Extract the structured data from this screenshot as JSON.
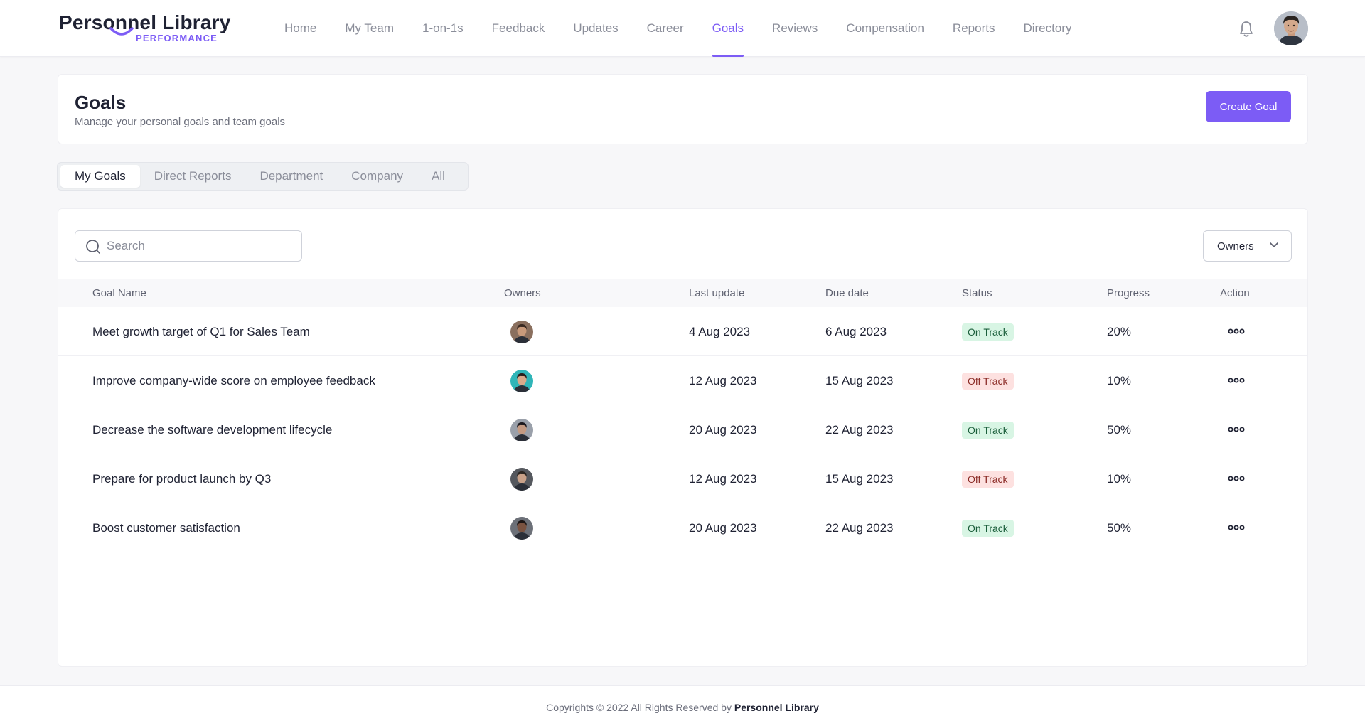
{
  "brand": {
    "name": "Personnel Library",
    "sub": "PERFORMANCE",
    "accent": "#7c5cf5"
  },
  "nav": {
    "items": [
      {
        "label": "Home",
        "active": false
      },
      {
        "label": "My Team",
        "active": false
      },
      {
        "label": "1-on-1s",
        "active": false
      },
      {
        "label": "Feedback",
        "active": false
      },
      {
        "label": "Updates",
        "active": false
      },
      {
        "label": "Career",
        "active": false
      },
      {
        "label": "Goals",
        "active": true
      },
      {
        "label": "Reviews",
        "active": false
      },
      {
        "label": "Compensation",
        "active": false
      },
      {
        "label": "Reports",
        "active": false
      },
      {
        "label": "Directory",
        "active": false
      }
    ],
    "icons": [
      "bell-icon",
      "user-avatar"
    ]
  },
  "header": {
    "title": "Goals",
    "subtitle": "Manage your personal goals and team goals",
    "create_label": "Create Goal"
  },
  "tabs": [
    {
      "label": "My Goals",
      "active": true
    },
    {
      "label": "Direct Reports",
      "active": false
    },
    {
      "label": "Department",
      "active": false
    },
    {
      "label": "Company",
      "active": false
    },
    {
      "label": "All",
      "active": false
    }
  ],
  "filters": {
    "search_placeholder": "Search",
    "owners_label": "Owners"
  },
  "table": {
    "columns": [
      "Goal Name",
      "Owners",
      "Last update",
      "Due date",
      "Status",
      "Progress",
      "Action"
    ],
    "rows": [
      {
        "goal": "Meet growth target of Q1 for Sales Team",
        "last_update": "4 Aug 2023",
        "due": "6 Aug 2023",
        "status": "On Track",
        "status_kind": "on",
        "progress": "20%",
        "avatar_bg": "#8a6f5e",
        "avatar_skin": "#c99a7b",
        "avatar_hair": "#3a2a22"
      },
      {
        "goal": "Improve company-wide score on employee feedback",
        "last_update": "12 Aug 2023",
        "due": "15 Aug 2023",
        "status": "Off Track",
        "status_kind": "off",
        "progress": "10%",
        "avatar_bg": "#2fb5b8",
        "avatar_skin": "#d9a98a",
        "avatar_hair": "#2a1f1c"
      },
      {
        "goal": "Decrease the software development lifecycle",
        "last_update": "20 Aug 2023",
        "due": "22 Aug 2023",
        "status": "On Track",
        "status_kind": "on",
        "progress": "50%",
        "avatar_bg": "#9aa0aa",
        "avatar_skin": "#c49a82",
        "avatar_hair": "#1d1a1f"
      },
      {
        "goal": "Prepare for product launch by Q3",
        "last_update": "12 Aug 2023",
        "due": "15 Aug 2023",
        "status": "Off Track",
        "status_kind": "off",
        "progress": "10%",
        "avatar_bg": "#55585e",
        "avatar_skin": "#c8a189",
        "avatar_hair": "#2b2622"
      },
      {
        "goal": "Boost customer satisfaction",
        "last_update": "20 Aug 2023",
        "due": "22 Aug 2023",
        "status": "On Track",
        "status_kind": "on",
        "progress": "50%",
        "avatar_bg": "#6c7078",
        "avatar_skin": "#7a5341",
        "avatar_hair": "#1b1515"
      }
    ]
  },
  "footer": {
    "text": "Copyrights © 2022 All Rights Reserved by",
    "brand": "Personnel Library"
  }
}
